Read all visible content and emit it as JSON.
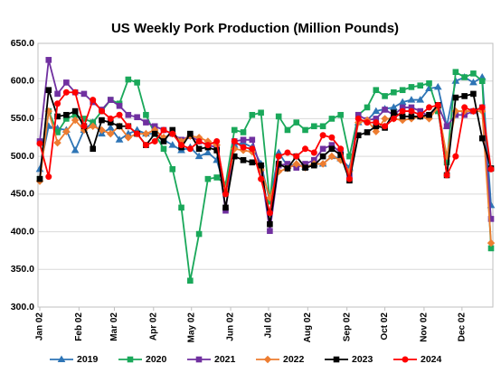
{
  "chart_data": {
    "type": "line",
    "title": "US Weekly Pork Production (Million Pounds)",
    "x": [
      0,
      7,
      14,
      21,
      28,
      35,
      42,
      49,
      56,
      63,
      70,
      77,
      84,
      91,
      98,
      105,
      112,
      119,
      126,
      133,
      140,
      147,
      154,
      161,
      168,
      175,
      182,
      189,
      196,
      203,
      210,
      217,
      224,
      231,
      238,
      245,
      252,
      259,
      266,
      273,
      280,
      287,
      294,
      301,
      308,
      315,
      322,
      329,
      336,
      343,
      350,
      357
    ],
    "xlim": [
      0,
      357
    ],
    "xticks": [
      {
        "value": 0,
        "label": "Jan 02"
      },
      {
        "value": 31,
        "label": "Feb 02"
      },
      {
        "value": 59,
        "label": "Mar 02"
      },
      {
        "value": 90,
        "label": "Apr 02"
      },
      {
        "value": 120,
        "label": "May 02"
      },
      {
        "value": 151,
        "label": "Jun 02"
      },
      {
        "value": 181,
        "label": "Jul 02"
      },
      {
        "value": 212,
        "label": "Aug 02"
      },
      {
        "value": 243,
        "label": "Sep 02"
      },
      {
        "value": 273,
        "label": "Oct 02"
      },
      {
        "value": 304,
        "label": "Nov 02"
      },
      {
        "value": 334,
        "label": "Dec 02"
      }
    ],
    "ylim": [
      300,
      650
    ],
    "yticks": [
      {
        "value": 300,
        "label": "300.0"
      },
      {
        "value": 350,
        "label": "350.0"
      },
      {
        "value": 400,
        "label": "400.0"
      },
      {
        "value": 450,
        "label": "450.0"
      },
      {
        "value": 500,
        "label": "500.0"
      },
      {
        "value": 550,
        "label": "550.0"
      },
      {
        "value": 600,
        "label": "600.0"
      },
      {
        "value": 650,
        "label": "650.0"
      }
    ],
    "grid": true,
    "legend": "bottom",
    "series": [
      {
        "name": "2019",
        "color": "#2e75b6",
        "marker": "triangle",
        "values": [
          483,
          540,
          537,
          535,
          508,
          535,
          545,
          530,
          538,
          522,
          530,
          535,
          530,
          530,
          522,
          515,
          508,
          512,
          500,
          505,
          495,
          455,
          515,
          518,
          512,
          490,
          440,
          505,
          487,
          490,
          486,
          490,
          490,
          500,
          497,
          485,
          545,
          548,
          560,
          563,
          565,
          572,
          575,
          575,
          590,
          592,
          540,
          600,
          605,
          598,
          605,
          435
        ]
      },
      {
        "name": "2020",
        "color": "#1aa85a",
        "marker": "square",
        "values": [
          470,
          560,
          532,
          550,
          555,
          550,
          545,
          560,
          575,
          570,
          602,
          598,
          555,
          530,
          510,
          483,
          432,
          335,
          397,
          470,
          472,
          463,
          535,
          532,
          555,
          558,
          440,
          553,
          535,
          545,
          535,
          540,
          540,
          550,
          555,
          500,
          555,
          565,
          588,
          580,
          585,
          588,
          592,
          594,
          597,
          560,
          492,
          612,
          605,
          610,
          600,
          378
        ]
      },
      {
        "name": "2021",
        "color": "#7030a0",
        "marker": "square",
        "values": [
          520,
          628,
          583,
          598,
          585,
          583,
          572,
          562,
          575,
          567,
          555,
          552,
          545,
          540,
          535,
          530,
          522,
          527,
          520,
          515,
          512,
          428,
          520,
          522,
          522,
          482,
          401,
          488,
          490,
          485,
          490,
          495,
          510,
          515,
          505,
          475,
          555,
          548,
          550,
          562,
          555,
          565,
          565,
          560,
          553,
          568,
          540,
          555,
          555,
          560,
          565,
          417
        ]
      },
      {
        "name": "2022",
        "color": "#ed7d31",
        "marker": "diamond",
        "values": [
          467,
          560,
          518,
          533,
          548,
          535,
          540,
          535,
          530,
          540,
          525,
          530,
          530,
          535,
          525,
          530,
          520,
          527,
          525,
          520,
          515,
          455,
          510,
          508,
          506,
          482,
          445,
          480,
          484,
          490,
          485,
          490,
          490,
          500,
          495,
          480,
          545,
          548,
          533,
          550,
          550,
          548,
          550,
          553,
          550,
          565,
          500,
          560,
          560,
          560,
          560,
          385
        ]
      },
      {
        "name": "2023",
        "color": "#000000",
        "marker": "square",
        "values": [
          470,
          588,
          553,
          555,
          560,
          540,
          510,
          548,
          545,
          540,
          540,
          530,
          515,
          530,
          520,
          535,
          512,
          530,
          510,
          512,
          508,
          432,
          500,
          495,
          492,
          488,
          410,
          490,
          484,
          500,
          485,
          488,
          500,
          510,
          502,
          468,
          528,
          532,
          540,
          538,
          558,
          553,
          553,
          553,
          555,
          568,
          475,
          578,
          580,
          583,
          524,
          484
        ]
      },
      {
        "name": "2024",
        "color": "#ff0000",
        "marker": "circle",
        "values": [
          517,
          473,
          570,
          585,
          585,
          540,
          575,
          560,
          550,
          555,
          540,
          530,
          515,
          520,
          535,
          530,
          515,
          510,
          520,
          515,
          520,
          450,
          520,
          512,
          510,
          470,
          425,
          500,
          505,
          500,
          510,
          505,
          528,
          525,
          510,
          470,
          550,
          545,
          545,
          540,
          550,
          560,
          560,
          555,
          565,
          568,
          475,
          500,
          565,
          560,
          565,
          483
        ]
      }
    ]
  }
}
